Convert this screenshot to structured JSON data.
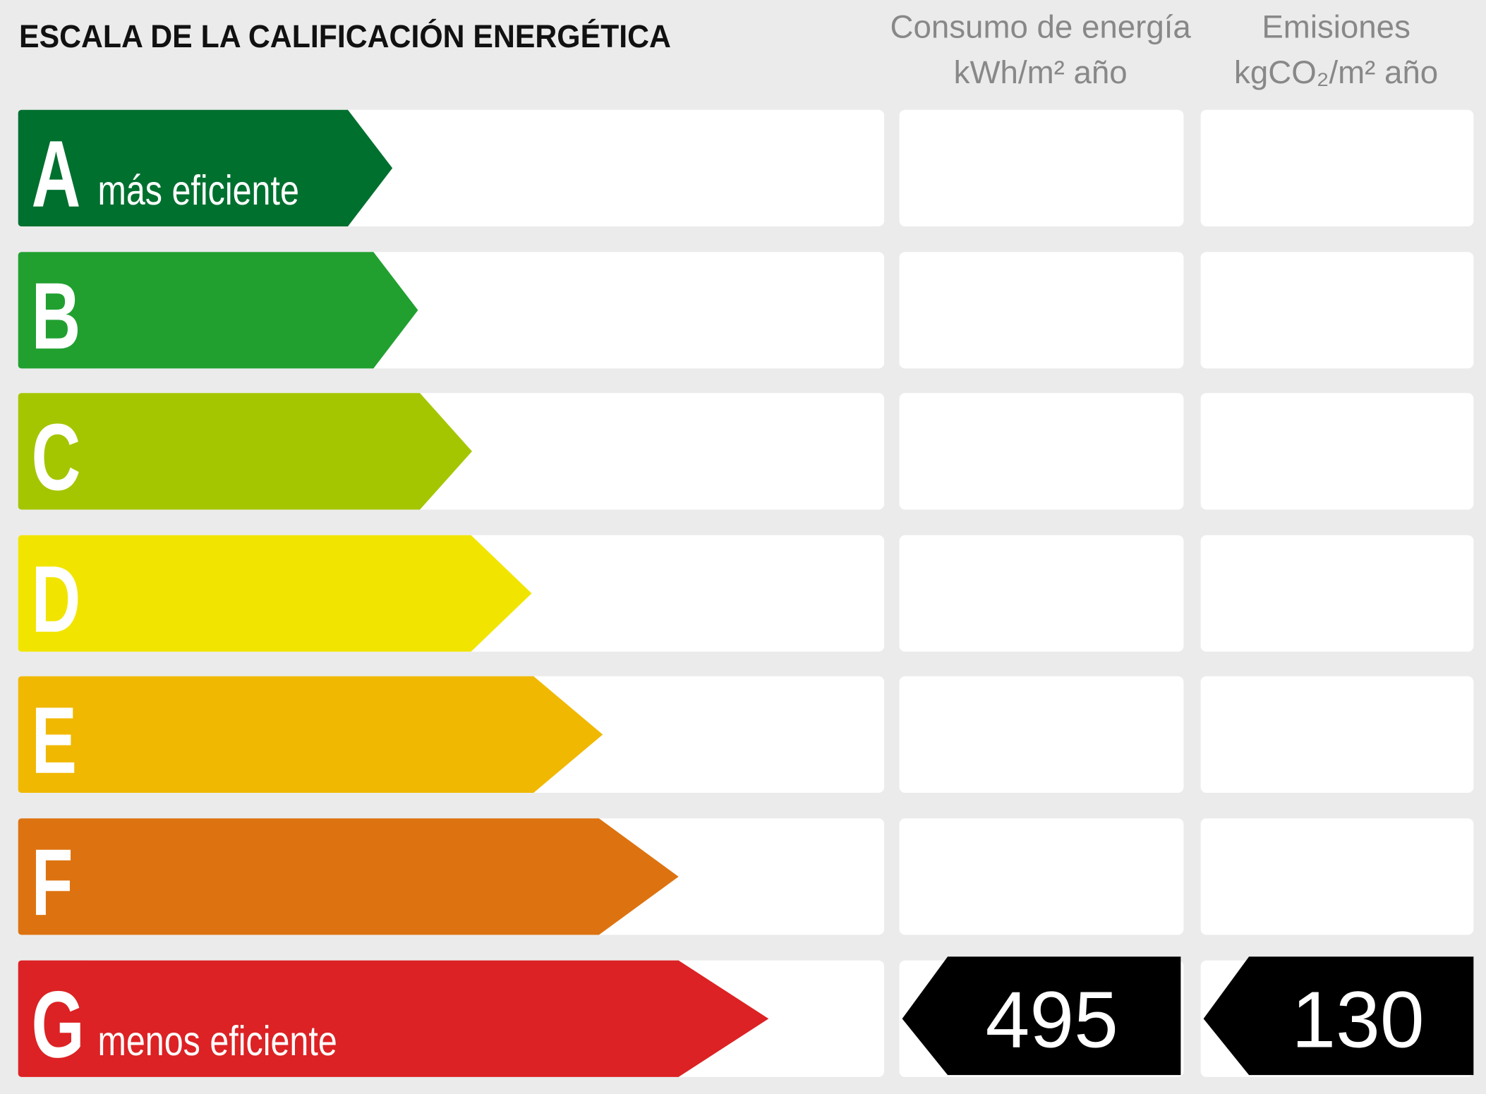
{
  "header": {
    "title": "ESCALA DE LA CALIFICACIÓN ENERGÉTICA",
    "energy": {
      "line1": "Consumo de energía",
      "line2": "kWh/m² año"
    },
    "emissions": {
      "line1": "Emisiones",
      "line2": "kgCO₂/m² año"
    }
  },
  "classes": [
    {
      "letter": "A",
      "note": "más eficiente",
      "color": "#00702f"
    },
    {
      "letter": "B",
      "color": "#21a030"
    },
    {
      "letter": "C",
      "color": "#a4c600"
    },
    {
      "letter": "D",
      "color": "#f1e500"
    },
    {
      "letter": "E",
      "color": "#f0b800"
    },
    {
      "letter": "F",
      "color": "#dd7310"
    },
    {
      "letter": "G",
      "note": "menos eficiente",
      "color": "#dc2224",
      "energy": 495,
      "emissions": 130
    }
  ]
}
